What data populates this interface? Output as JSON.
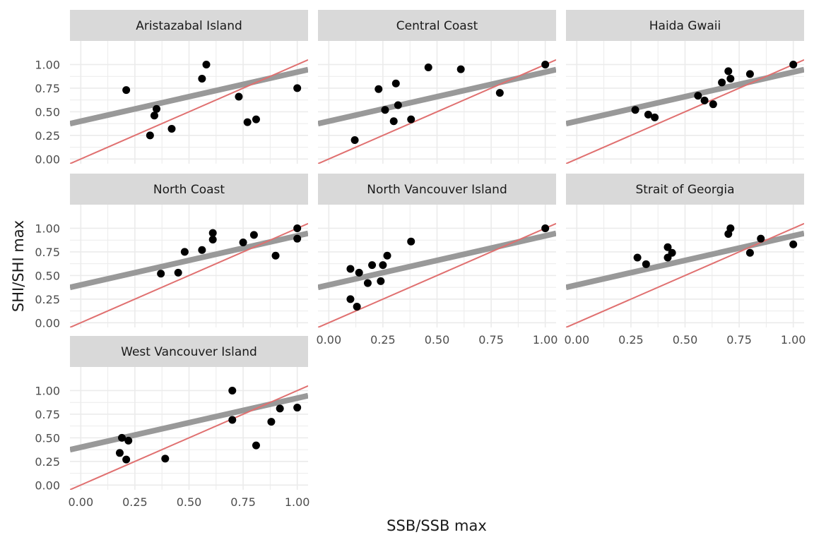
{
  "chart_data": {
    "type": "scatter",
    "xlabel": "SSB/SSB max",
    "ylabel": "SHI/SHI max",
    "xlim": [
      -0.05,
      1.05
    ],
    "ylim": [
      -0.05,
      1.25
    ],
    "x_ticks": [
      "0.00",
      "0.25",
      "0.50",
      "0.75",
      "1.00"
    ],
    "y_ticks": [
      "0.00",
      "0.25",
      "0.50",
      "0.75",
      "1.00"
    ],
    "grid": true,
    "panels": [
      {
        "name": "Aristazabal Island",
        "points": [
          [
            0.21,
            0.73
          ],
          [
            0.32,
            0.25
          ],
          [
            0.34,
            0.46
          ],
          [
            0.35,
            0.53
          ],
          [
            0.42,
            0.32
          ],
          [
            0.56,
            0.85
          ],
          [
            0.58,
            1.0
          ],
          [
            0.73,
            0.66
          ],
          [
            0.77,
            0.39
          ],
          [
            0.81,
            0.42
          ],
          [
            1.0,
            0.75
          ]
        ]
      },
      {
        "name": "Central Coast",
        "points": [
          [
            0.12,
            0.2
          ],
          [
            0.23,
            0.74
          ],
          [
            0.26,
            0.52
          ],
          [
            0.3,
            0.4
          ],
          [
            0.31,
            0.8
          ],
          [
            0.32,
            0.57
          ],
          [
            0.38,
            0.42
          ],
          [
            0.46,
            0.97
          ],
          [
            0.61,
            0.95
          ],
          [
            0.79,
            0.7
          ],
          [
            1.0,
            1.0
          ]
        ]
      },
      {
        "name": "Haida Gwaii",
        "points": [
          [
            0.27,
            0.52
          ],
          [
            0.33,
            0.47
          ],
          [
            0.36,
            0.44
          ],
          [
            0.56,
            0.67
          ],
          [
            0.59,
            0.62
          ],
          [
            0.63,
            0.58
          ],
          [
            0.67,
            0.81
          ],
          [
            0.7,
            0.93
          ],
          [
            0.71,
            0.85
          ],
          [
            0.8,
            0.9
          ],
          [
            1.0,
            1.0
          ]
        ]
      },
      {
        "name": "North Coast",
        "points": [
          [
            0.37,
            0.52
          ],
          [
            0.45,
            0.53
          ],
          [
            0.48,
            0.75
          ],
          [
            0.56,
            0.77
          ],
          [
            0.61,
            0.95
          ],
          [
            0.61,
            0.88
          ],
          [
            0.75,
            0.85
          ],
          [
            0.8,
            0.93
          ],
          [
            0.9,
            0.71
          ],
          [
            1.0,
            1.0
          ],
          [
            1.0,
            0.89
          ]
        ]
      },
      {
        "name": "North Vancouver Island",
        "points": [
          [
            0.1,
            0.57
          ],
          [
            0.1,
            0.25
          ],
          [
            0.13,
            0.17
          ],
          [
            0.14,
            0.53
          ],
          [
            0.18,
            0.42
          ],
          [
            0.2,
            0.61
          ],
          [
            0.24,
            0.44
          ],
          [
            0.25,
            0.61
          ],
          [
            0.27,
            0.71
          ],
          [
            0.38,
            0.86
          ],
          [
            1.0,
            1.0
          ]
        ]
      },
      {
        "name": "Strait of Georgia",
        "points": [
          [
            0.28,
            0.69
          ],
          [
            0.32,
            0.62
          ],
          [
            0.42,
            0.8
          ],
          [
            0.42,
            0.69
          ],
          [
            0.44,
            0.74
          ],
          [
            0.7,
            0.94
          ],
          [
            0.71,
            1.0
          ],
          [
            0.8,
            0.74
          ],
          [
            0.85,
            0.89
          ],
          [
            1.0,
            0.83
          ]
        ]
      },
      {
        "name": "West Vancouver Island",
        "points": [
          [
            0.18,
            0.34
          ],
          [
            0.19,
            0.5
          ],
          [
            0.21,
            0.27
          ],
          [
            0.22,
            0.47
          ],
          [
            0.39,
            0.28
          ],
          [
            0.7,
            1.0
          ],
          [
            0.7,
            0.69
          ],
          [
            0.81,
            0.42
          ],
          [
            0.88,
            0.67
          ],
          [
            0.92,
            0.81
          ],
          [
            1.0,
            0.82
          ]
        ]
      }
    ],
    "reference_lines": [
      {
        "slope": 0.52,
        "intercept": 0.4,
        "color": "#999999"
      },
      {
        "slope": 1.0,
        "intercept": 0.0,
        "color": "#e07070"
      }
    ]
  },
  "colors": {
    "strip": "#d9d9d9",
    "grid": "#ebebeb",
    "point": "#000000",
    "fit_line": "#999999",
    "identity_line": "#e07070"
  }
}
